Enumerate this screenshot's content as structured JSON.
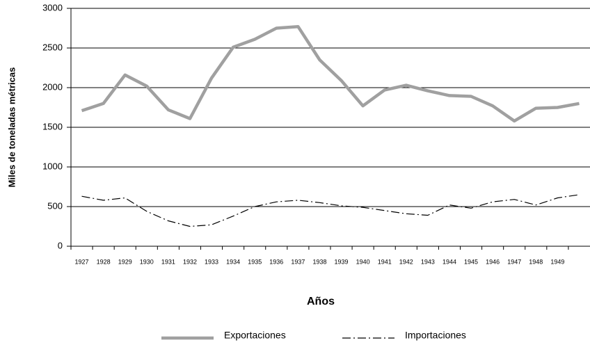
{
  "chart_data": {
    "type": "line",
    "y_label": "Miles de toneladas métricas",
    "x_label": "Años",
    "categories": [
      "1927",
      "1928",
      "1929",
      "1930",
      "1931",
      "1932",
      "1933",
      "1934",
      "1935",
      "1936",
      "1937",
      "1938",
      "1939",
      "1940",
      "1941",
      "1942",
      "1943",
      "1944",
      "1945",
      "1946",
      "1947",
      "1948",
      "1949",
      null
    ],
    "series": [
      {
        "name": "Exportaciones",
        "color": "#a0a0a0",
        "style": "solid",
        "values": [
          1710,
          1800,
          2160,
          2020,
          1720,
          1610,
          2120,
          2510,
          2610,
          2750,
          2770,
          2350,
          2090,
          1770,
          1970,
          2030,
          1960,
          1900,
          1890,
          1770,
          1580,
          1740,
          1750,
          1800
        ]
      },
      {
        "name": "Importaciones",
        "color": "#000000",
        "style": "dashdot",
        "values": [
          630,
          580,
          610,
          440,
          320,
          250,
          270,
          380,
          500,
          560,
          580,
          550,
          510,
          490,
          450,
          410,
          390,
          520,
          480,
          560,
          590,
          520,
          610,
          650
        ]
      }
    ],
    "ylim": [
      0,
      3000
    ],
    "yticks": [
      0,
      500,
      1000,
      1500,
      2000,
      2500,
      3000
    ],
    "grid": true
  }
}
